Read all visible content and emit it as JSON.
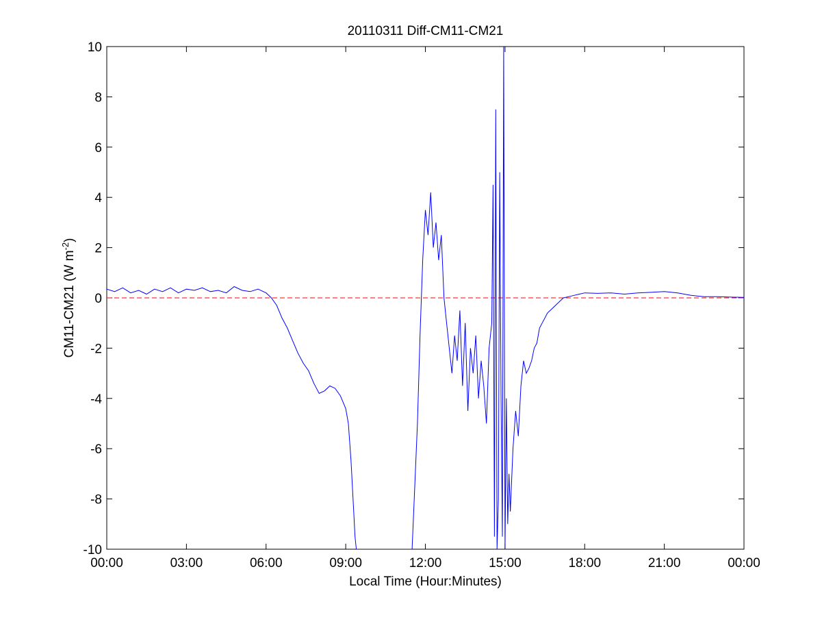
{
  "chart_data": {
    "type": "line",
    "title": "20110311 Diff-CM11-CM21",
    "xlabel": "Local Time (Hour:Minutes)",
    "ylabel": {
      "main": "CM11-CM21 (W m",
      "superscript": "-2",
      "close": ")"
    },
    "xlim_hours": [
      0,
      24
    ],
    "ylim": [
      -10,
      10
    ],
    "x_ticks": [
      {
        "hours": 0,
        "label": "00:00"
      },
      {
        "hours": 3,
        "label": "03:00"
      },
      {
        "hours": 6,
        "label": "06:00"
      },
      {
        "hours": 9,
        "label": "09:00"
      },
      {
        "hours": 12,
        "label": "12:00"
      },
      {
        "hours": 15,
        "label": "15:00"
      },
      {
        "hours": 18,
        "label": "18:00"
      },
      {
        "hours": 21,
        "label": "21:00"
      },
      {
        "hours": 24,
        "label": "00:00"
      }
    ],
    "y_ticks": [
      -10,
      -8,
      -6,
      -4,
      -2,
      0,
      2,
      4,
      6,
      8,
      10
    ],
    "grid": false,
    "series": [
      {
        "color": "#0000ff",
        "style": "solid",
        "x_hours": [
          0,
          0.3,
          0.6,
          0.9,
          1.2,
          1.5,
          1.8,
          2.1,
          2.4,
          2.7,
          3.0,
          3.3,
          3.6,
          3.9,
          4.2,
          4.5,
          4.8,
          5.1,
          5.4,
          5.7,
          6.0,
          6.2,
          6.4,
          6.6,
          6.8,
          7.0,
          7.2,
          7.4,
          7.6,
          7.8,
          8.0,
          8.2,
          8.4,
          8.6,
          8.8,
          9.0,
          9.1,
          9.2,
          9.3,
          9.35,
          9.4,
          11.5,
          11.6,
          11.7,
          11.8,
          11.9,
          12.0,
          12.1,
          12.2,
          12.3,
          12.4,
          12.5,
          12.6,
          12.7,
          12.8,
          12.9,
          13.0,
          13.1,
          13.2,
          13.3,
          13.4,
          13.5,
          13.6,
          13.7,
          13.8,
          13.9,
          14.0,
          14.1,
          14.2,
          14.3,
          14.4,
          14.5,
          14.55,
          14.6,
          14.65,
          14.7,
          14.75,
          14.8,
          14.85,
          14.9,
          14.95,
          15.0,
          15.05,
          15.1,
          15.15,
          15.2,
          15.3,
          15.4,
          15.5,
          15.6,
          15.7,
          15.8,
          15.9,
          16.0,
          16.1,
          16.2,
          16.3,
          16.4,
          16.5,
          16.6,
          16.7,
          16.8,
          17.0,
          17.2,
          17.4,
          17.6,
          17.8,
          18.0,
          18.5,
          19.0,
          19.5,
          20.0,
          20.5,
          21.0,
          21.5,
          22.0,
          22.5,
          23.0,
          23.5,
          24.0
        ],
        "y": [
          0.35,
          0.25,
          0.4,
          0.2,
          0.3,
          0.15,
          0.35,
          0.25,
          0.4,
          0.2,
          0.35,
          0.3,
          0.4,
          0.25,
          0.3,
          0.2,
          0.45,
          0.3,
          0.25,
          0.35,
          0.2,
          0.0,
          -0.3,
          -0.8,
          -1.2,
          -1.7,
          -2.2,
          -2.6,
          -2.9,
          -3.4,
          -3.8,
          -3.7,
          -3.5,
          -3.6,
          -3.9,
          -4.4,
          -5.0,
          -6.5,
          -8.5,
          -9.5,
          -10,
          -10,
          -7.5,
          -5.0,
          -1.5,
          1.5,
          3.5,
          2.5,
          4.2,
          2.0,
          3.0,
          1.5,
          2.5,
          0.0,
          -1.0,
          -2.0,
          -3.0,
          -1.5,
          -2.5,
          -0.5,
          -3.5,
          -1.0,
          -4.5,
          -2.0,
          -3.0,
          -1.5,
          -4.0,
          -2.5,
          -3.5,
          -5.0,
          -2.0,
          -1.0,
          4.5,
          -9.5,
          7.5,
          -10,
          -8.0,
          5.0,
          -4.0,
          -9.5,
          10,
          -10,
          -4.0,
          -9.0,
          -7.0,
          -8.5,
          -6.0,
          -4.5,
          -5.5,
          -3.5,
          -2.5,
          -3.0,
          -2.8,
          -2.5,
          -2.0,
          -1.8,
          -1.2,
          -1.0,
          -0.8,
          -0.6,
          -0.5,
          -0.4,
          -0.2,
          0.0,
          0.05,
          0.1,
          0.15,
          0.2,
          0.18,
          0.2,
          0.15,
          0.2,
          0.22,
          0.25,
          0.2,
          0.1,
          0.05,
          0.05,
          0.03,
          0.02
        ]
      }
    ],
    "reference_lines": [
      {
        "y": 0,
        "color": "#ff0000",
        "style": "dashed"
      }
    ]
  }
}
